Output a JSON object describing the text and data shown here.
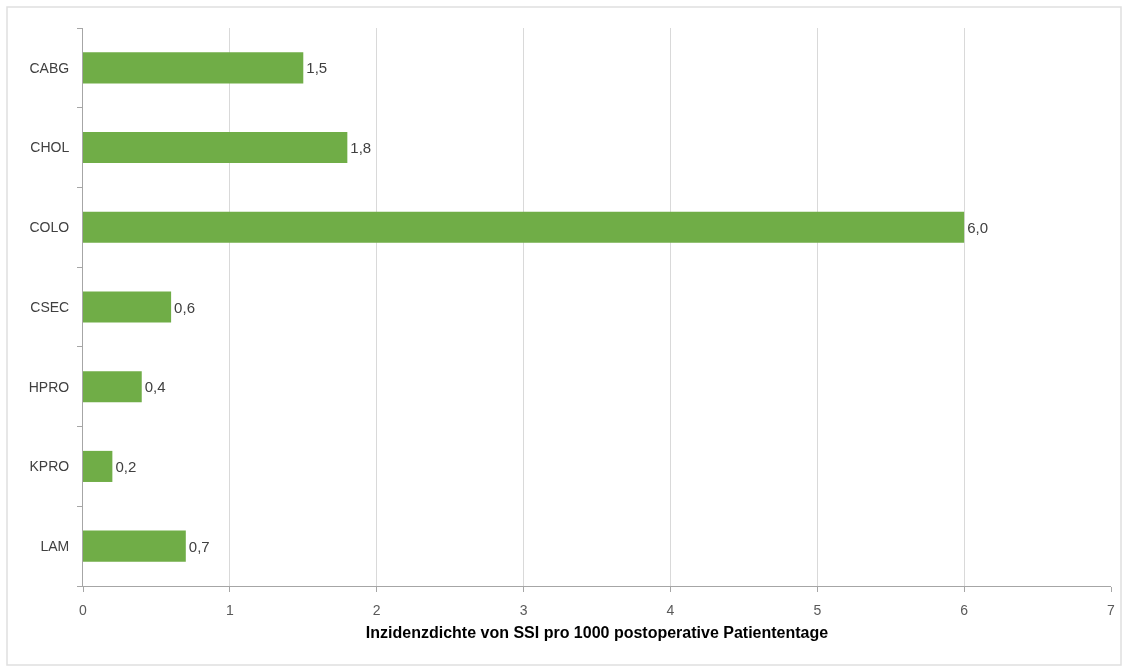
{
  "chart_data": {
    "type": "bar",
    "orientation": "horizontal",
    "categories": [
      "CABG",
      "CHOL",
      "COLO",
      "CSEC",
      "HPRO",
      "KPRO",
      "LAM"
    ],
    "values": [
      1.5,
      1.8,
      6.0,
      0.6,
      0.4,
      0.2,
      0.7
    ],
    "value_labels": [
      "1,5",
      "1,8",
      "6,0",
      "0,6",
      "0,4",
      "0,2",
      "0,7"
    ],
    "color": "#70ad47",
    "xlabel": "Inzidenzdichte von SSI pro 1000 postoperative Patiententage",
    "xlim": [
      0,
      7
    ],
    "xticks": [
      0,
      1,
      2,
      3,
      4,
      5,
      6,
      7
    ],
    "grid": "x"
  }
}
